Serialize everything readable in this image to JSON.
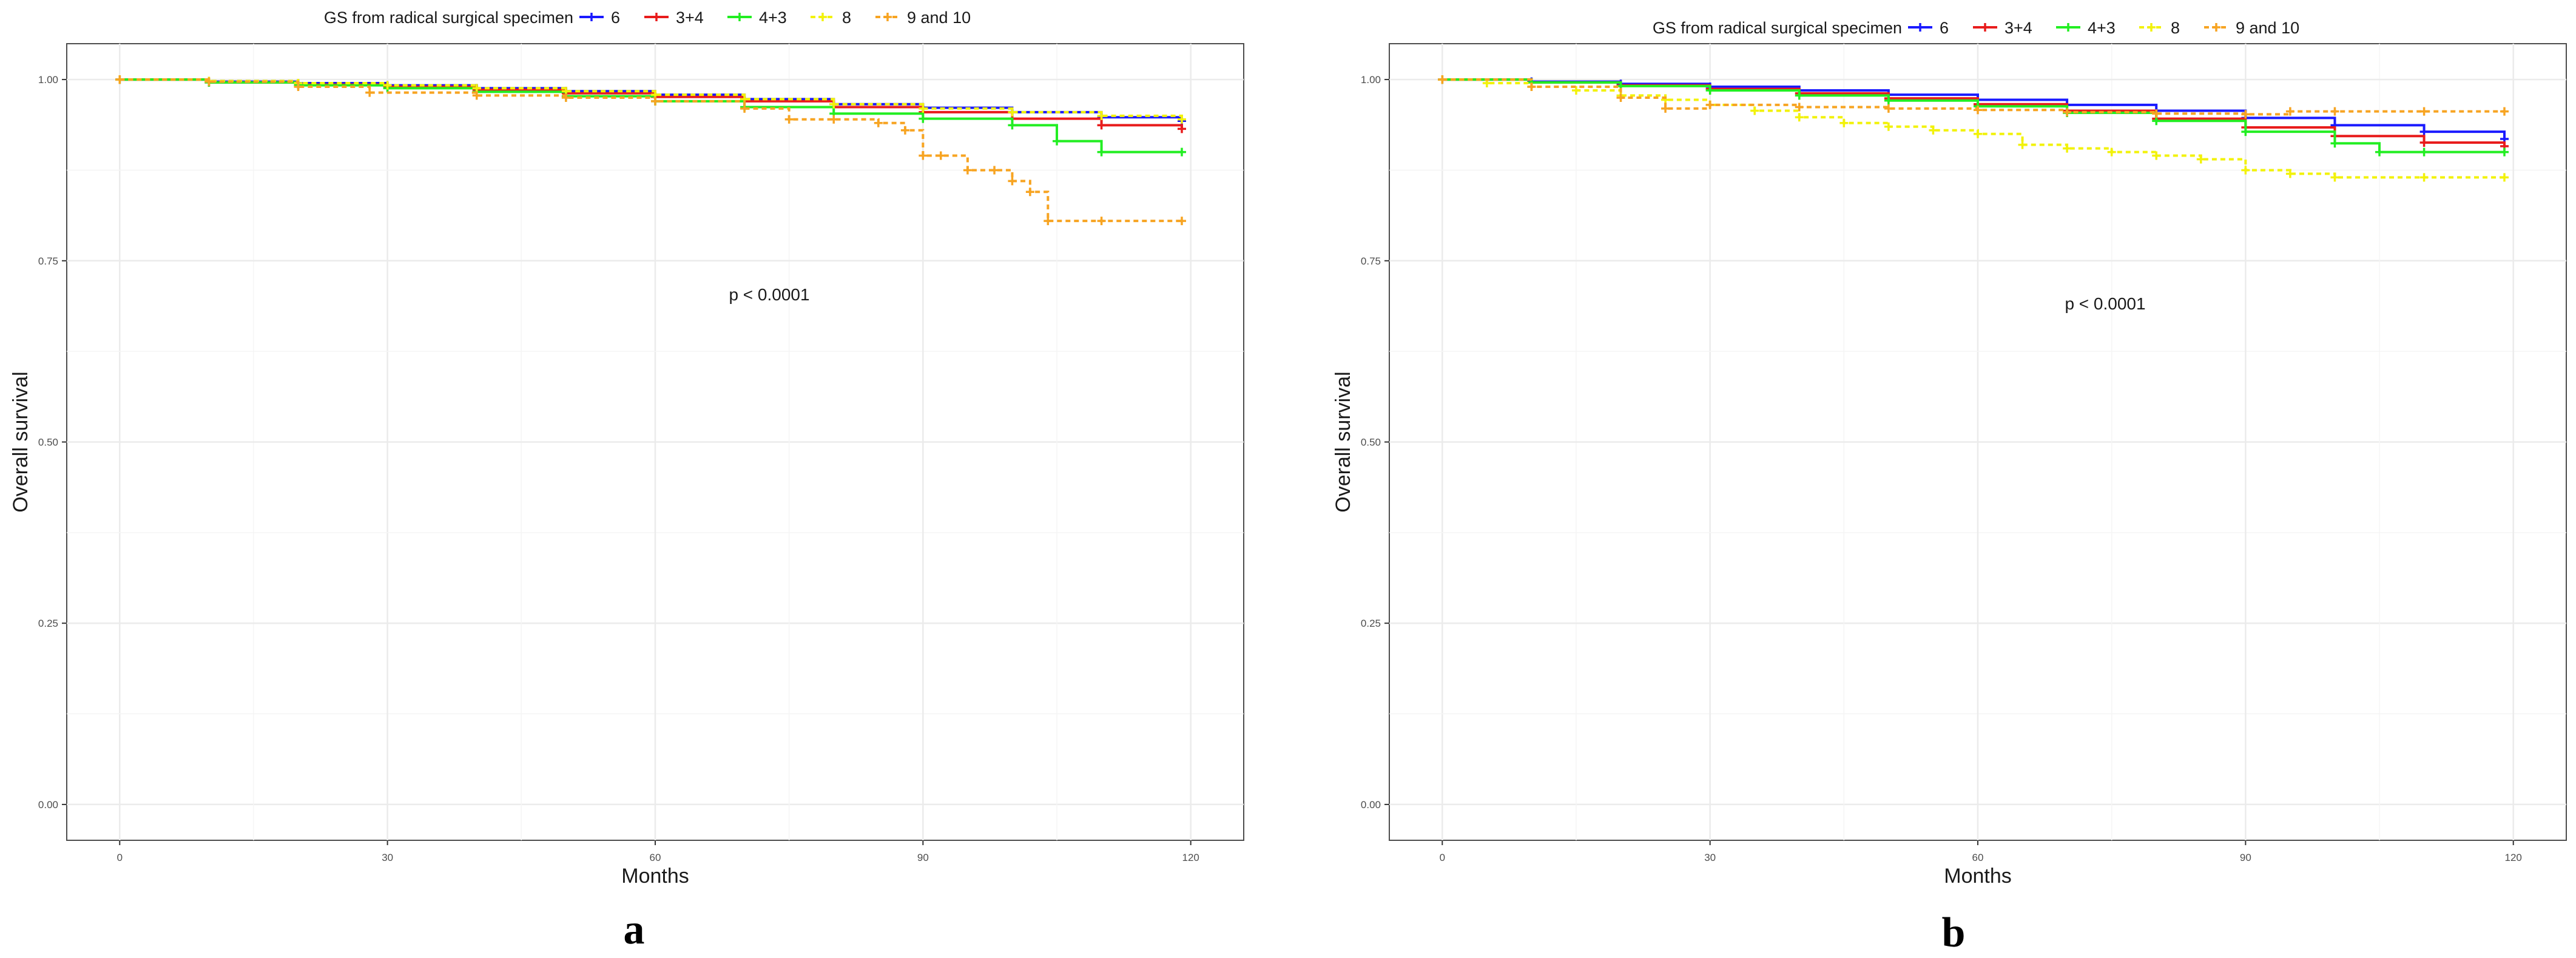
{
  "chart_data": [
    {
      "type": "line",
      "panel_label": "a",
      "legend_title": "GS from radical surgical specimen",
      "annotation": "p < 0.0001",
      "xlabel": "Months",
      "ylabel": "Overall survival",
      "xlim": [
        0,
        120
      ],
      "ylim": [
        0,
        1
      ],
      "xticks": [
        "0",
        "30",
        "60",
        "90",
        "120"
      ],
      "yticks": [
        "0.00",
        "0.25",
        "0.50",
        "0.75",
        "1.00"
      ],
      "grid": true,
      "legend_position": "top",
      "series": [
        {
          "name": "6",
          "color": "#1a1aff",
          "dashed": false,
          "x": [
            0,
            10,
            20,
            30,
            40,
            50,
            60,
            70,
            80,
            90,
            100,
            110,
            119
          ],
          "y": [
            1.0,
            0.997,
            0.995,
            0.992,
            0.988,
            0.984,
            0.979,
            0.973,
            0.966,
            0.961,
            0.955,
            0.948,
            0.943
          ]
        },
        {
          "name": "3+4",
          "color": "#e81c1c",
          "dashed": false,
          "x": [
            0,
            10,
            20,
            30,
            40,
            50,
            60,
            70,
            80,
            90,
            100,
            110,
            119
          ],
          "y": [
            1.0,
            0.996,
            0.993,
            0.99,
            0.986,
            0.981,
            0.976,
            0.97,
            0.962,
            0.955,
            0.946,
            0.937,
            0.932
          ]
        },
        {
          "name": "4+3",
          "color": "#22ee22",
          "dashed": false,
          "x": [
            0,
            10,
            20,
            30,
            40,
            50,
            60,
            70,
            80,
            90,
            100,
            105,
            110,
            119
          ],
          "y": [
            1.0,
            0.996,
            0.992,
            0.988,
            0.983,
            0.977,
            0.97,
            0.962,
            0.953,
            0.946,
            0.937,
            0.915,
            0.9,
            0.9
          ]
        },
        {
          "name": "8",
          "color": "#f2f20a",
          "dashed": true,
          "x": [
            0,
            10,
            20,
            30,
            40,
            50,
            60,
            70,
            80,
            90,
            100,
            110,
            119
          ],
          "y": [
            1.0,
            0.998,
            0.995,
            0.992,
            0.988,
            0.984,
            0.979,
            0.973,
            0.966,
            0.96,
            0.955,
            0.95,
            0.945
          ]
        },
        {
          "name": "9 and 10",
          "color": "#f7a422",
          "dashed": true,
          "x": [
            0,
            10,
            20,
            28,
            40,
            50,
            60,
            70,
            75,
            80,
            85,
            88,
            90,
            92,
            95,
            98,
            100,
            102,
            104,
            110,
            119
          ],
          "y": [
            1.0,
            0.997,
            0.99,
            0.982,
            0.978,
            0.975,
            0.97,
            0.96,
            0.945,
            0.945,
            0.94,
            0.93,
            0.895,
            0.895,
            0.875,
            0.875,
            0.86,
            0.845,
            0.805,
            0.805,
            0.805
          ]
        }
      ]
    },
    {
      "type": "line",
      "panel_label": "b",
      "legend_title": "GS from radical surgical specimen",
      "annotation": "p < 0.0001",
      "xlabel": "Months",
      "ylabel": "Overall survival",
      "xlim": [
        0,
        120
      ],
      "ylim": [
        0,
        1
      ],
      "xticks": [
        "0",
        "30",
        "60",
        "90",
        "120"
      ],
      "yticks": [
        "0.00",
        "0.25",
        "0.50",
        "0.75",
        "1.00"
      ],
      "grid": true,
      "legend_position": "top",
      "series": [
        {
          "name": "6",
          "color": "#1a1aff",
          "dashed": false,
          "x": [
            0,
            10,
            20,
            30,
            40,
            50,
            60,
            70,
            80,
            90,
            100,
            110,
            119
          ],
          "y": [
            1.0,
            0.997,
            0.994,
            0.99,
            0.985,
            0.979,
            0.972,
            0.965,
            0.957,
            0.947,
            0.937,
            0.928,
            0.918
          ]
        },
        {
          "name": "3+4",
          "color": "#e81c1c",
          "dashed": false,
          "x": [
            0,
            10,
            20,
            30,
            40,
            50,
            60,
            70,
            80,
            90,
            100,
            110,
            119
          ],
          "y": [
            1.0,
            0.996,
            0.992,
            0.987,
            0.981,
            0.974,
            0.966,
            0.957,
            0.946,
            0.934,
            0.922,
            0.913,
            0.908
          ]
        },
        {
          "name": "4+3",
          "color": "#22ee22",
          "dashed": false,
          "x": [
            0,
            10,
            20,
            30,
            40,
            50,
            60,
            70,
            80,
            90,
            100,
            105,
            110,
            119
          ],
          "y": [
            1.0,
            0.996,
            0.991,
            0.985,
            0.978,
            0.971,
            0.963,
            0.954,
            0.943,
            0.928,
            0.912,
            0.9,
            0.9,
            0.9
          ]
        },
        {
          "name": "8",
          "color": "#f2f20a",
          "dashed": true,
          "x": [
            0,
            5,
            10,
            15,
            20,
            25,
            30,
            35,
            40,
            45,
            50,
            55,
            60,
            65,
            70,
            75,
            80,
            85,
            90,
            95,
            100,
            110,
            119
          ],
          "y": [
            1.0,
            0.995,
            0.99,
            0.985,
            0.978,
            0.972,
            0.965,
            0.957,
            0.948,
            0.94,
            0.935,
            0.93,
            0.925,
            0.91,
            0.905,
            0.9,
            0.895,
            0.89,
            0.875,
            0.87,
            0.865,
            0.865,
            0.865
          ]
        },
        {
          "name": "9 and 10",
          "color": "#f7a422",
          "dashed": true,
          "x": [
            0,
            10,
            20,
            25,
            30,
            40,
            50,
            60,
            70,
            80,
            90,
            95,
            100,
            110,
            119
          ],
          "y": [
            1.0,
            0.99,
            0.975,
            0.96,
            0.965,
            0.962,
            0.96,
            0.958,
            0.955,
            0.953,
            0.952,
            0.956,
            0.956,
            0.956,
            0.956
          ]
        }
      ]
    }
  ]
}
